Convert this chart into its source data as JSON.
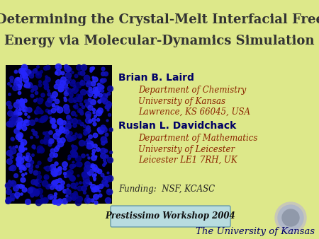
{
  "title_line1": "Determining the Crystal-Melt Interfacial Free",
  "title_line2": "Energy via Molecular-Dynamics Simulation",
  "bg_color": "#dde88a",
  "title_bg_color": "#dde88a",
  "author1": "Brian B. Laird",
  "author1_dept": "Department of Chemistry",
  "author1_univ": "University of Kansas",
  "author1_addr": "Lawrence, KS 66045, USA",
  "author2": "Ruslan L. Davidchack",
  "author2_dept": "Department of Mathematics",
  "author2_univ": "University of Leicester",
  "author2_addr": "Leicester LE1 7RH, UK",
  "funding": "Funding:  NSF, KCASC",
  "workshop": "Prestissimo Workshop 2004",
  "univ_name": "The University of Kansas",
  "author_color": "#000066",
  "dept_color": "#8b2500",
  "funding_color": "#222222",
  "workshop_bg": "#b8dce0",
  "workshop_border": "#6699aa",
  "univ_color": "#000066",
  "title_fontsize": 13,
  "author_fontsize": 10,
  "dept_fontsize": 8.5,
  "funding_fontsize": 8.5,
  "workshop_fontsize": 8.5,
  "univ_fontsize": 9.5,
  "title_color": "#333333"
}
